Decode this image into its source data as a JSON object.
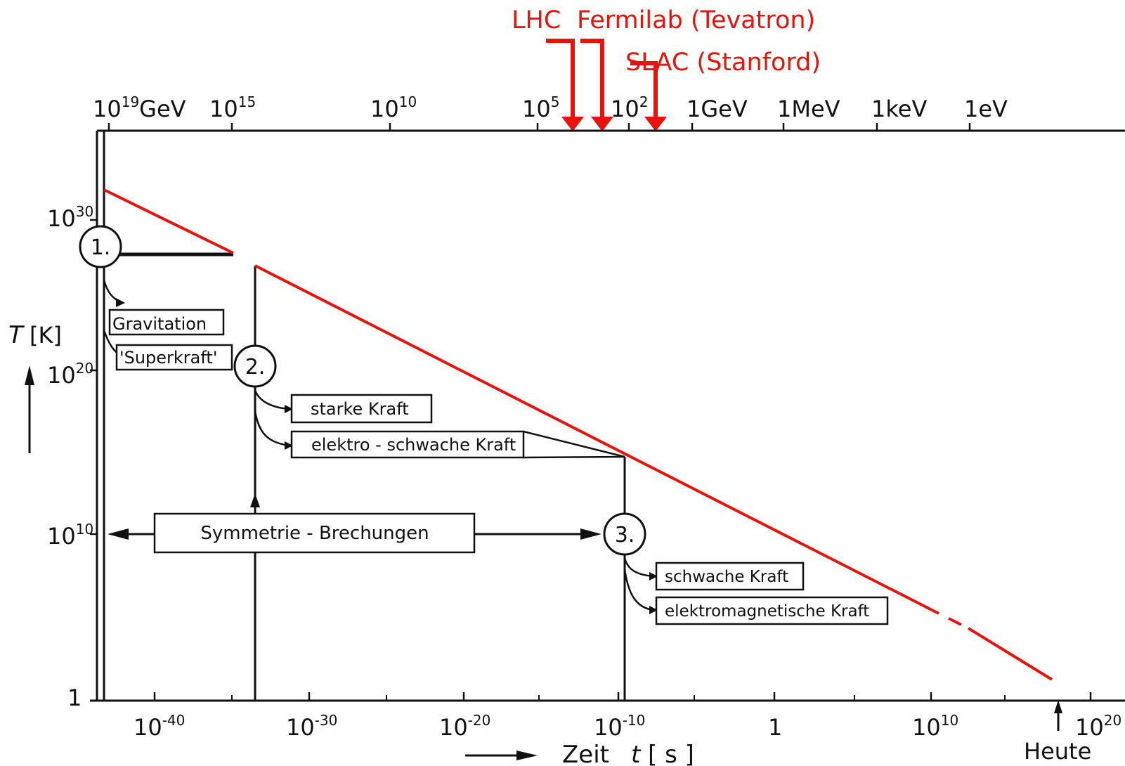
{
  "accelerators": {
    "lhc": "LHC",
    "fermilab": "Fermilab (Tevatron)",
    "slac": "SLAC (Stanford)"
  },
  "energy_axis": {
    "e19": "10",
    "e19_exp": "19",
    "e19_unit": "GeV",
    "e15": "10",
    "e15_exp": "15",
    "e10": "10",
    "e10_exp": "10",
    "e5": "10",
    "e5_exp": "5",
    "e2": "10",
    "e2_exp": "2",
    "gev": "1GeV",
    "mev": "1MeV",
    "kev": "1keV",
    "ev": "1eV"
  },
  "y_axis": {
    "label_T": "T",
    "label_unit": "[K]",
    "t30": "10",
    "t30_exp": "30",
    "t20": "10",
    "t20_exp": "20",
    "t10": "10",
    "t10_exp": "10",
    "t0": "1"
  },
  "x_axis": {
    "m40": "10",
    "m40_exp": "-40",
    "m30": "10",
    "m30_exp": "-30",
    "m20": "10",
    "m20_exp": "-20",
    "m10": "10",
    "m10_exp": "-10",
    "one": "1",
    "p10": "10",
    "p10_exp": "10",
    "p20": "10",
    "p20_exp": "20",
    "label_zeit": "Zeit",
    "label_t": "t",
    "label_unit": "[ s ]",
    "heute": "Heute"
  },
  "nodes": {
    "n1": "1.",
    "n2": "2.",
    "n3": "3."
  },
  "forces": {
    "gravitation": "Gravitation",
    "superkraft": "'Superkraft'",
    "starke": "starke Kraft",
    "elektroschwach": "elektro - schwache Kraft",
    "schwach": "schwache Kraft",
    "elektromagnetisch": "elektromagnetische Kraft"
  },
  "symmetry": "Symmetrie  -  Brechungen",
  "colors": {
    "accent": "#e8140c",
    "ink": "#111111"
  }
}
